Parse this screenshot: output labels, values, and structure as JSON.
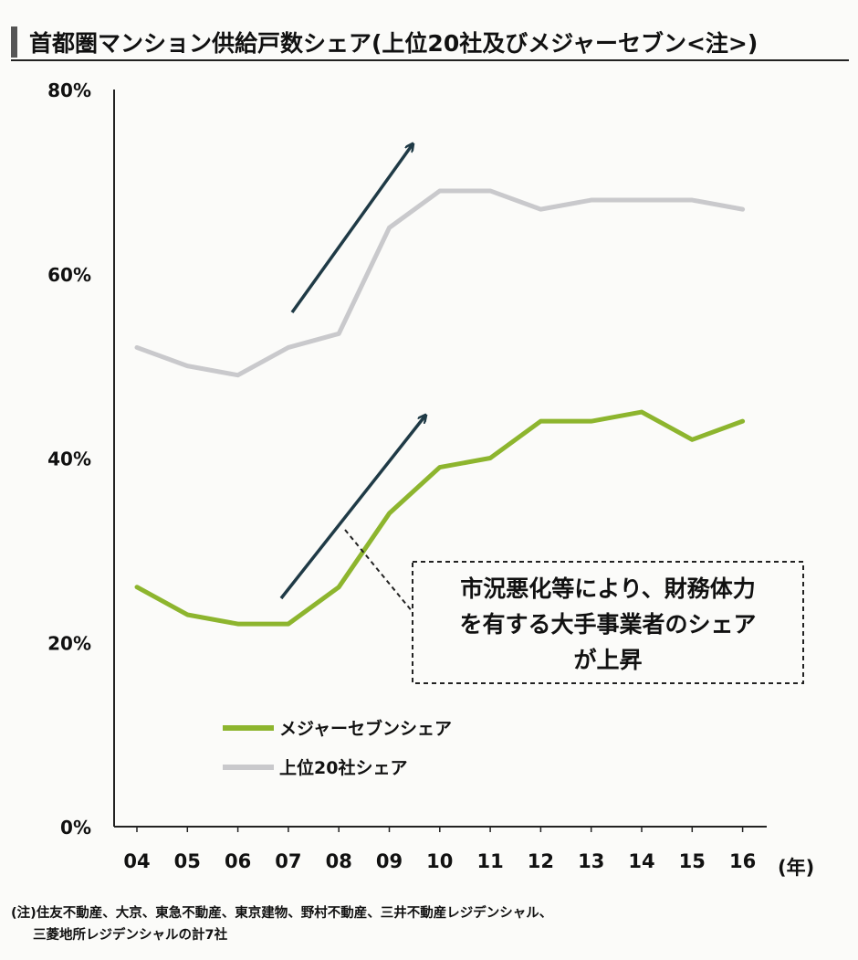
{
  "title": "首都圏マンション供給戸数シェア(上位20社及びメジャーセブン<注>)",
  "colors": {
    "major7": "#8db52e",
    "top20": "#c9c9cc",
    "arrow": "#1f3a46",
    "axis": "#222222",
    "accent_bar": "#555555"
  },
  "chart_data": {
    "type": "line",
    "x": [
      "04",
      "05",
      "06",
      "07",
      "08",
      "09",
      "10",
      "11",
      "12",
      "13",
      "14",
      "15",
      "16"
    ],
    "x_unit": "(年)",
    "y_ticks": [
      "0%",
      "20%",
      "40%",
      "60%",
      "80%"
    ],
    "ylim": [
      0,
      80
    ],
    "grid": false,
    "legend_position": "center-left",
    "series": [
      {
        "name": "メジャーセブンシェア",
        "color": "#8db52e",
        "values": [
          26,
          23,
          22,
          22,
          26,
          34,
          39,
          40,
          44,
          44,
          45,
          42,
          44
        ]
      },
      {
        "name": "上位20社シェア",
        "color": "#c9c9cc",
        "values": [
          52,
          50,
          49,
          52,
          53.5,
          65,
          69,
          69,
          67,
          68,
          68,
          68,
          67
        ]
      }
    ],
    "annotation": {
      "lines": [
        "市況悪化等により、財務体力",
        "を有する大手事業者のシェア",
        "が上昇"
      ]
    }
  },
  "note": {
    "lines": [
      "(注)住友不動産、大京、東急不動産、東京建物、野村不動産、三井不動産レジデンシャル、",
      "三菱地所レジデンシャルの計7社"
    ]
  }
}
